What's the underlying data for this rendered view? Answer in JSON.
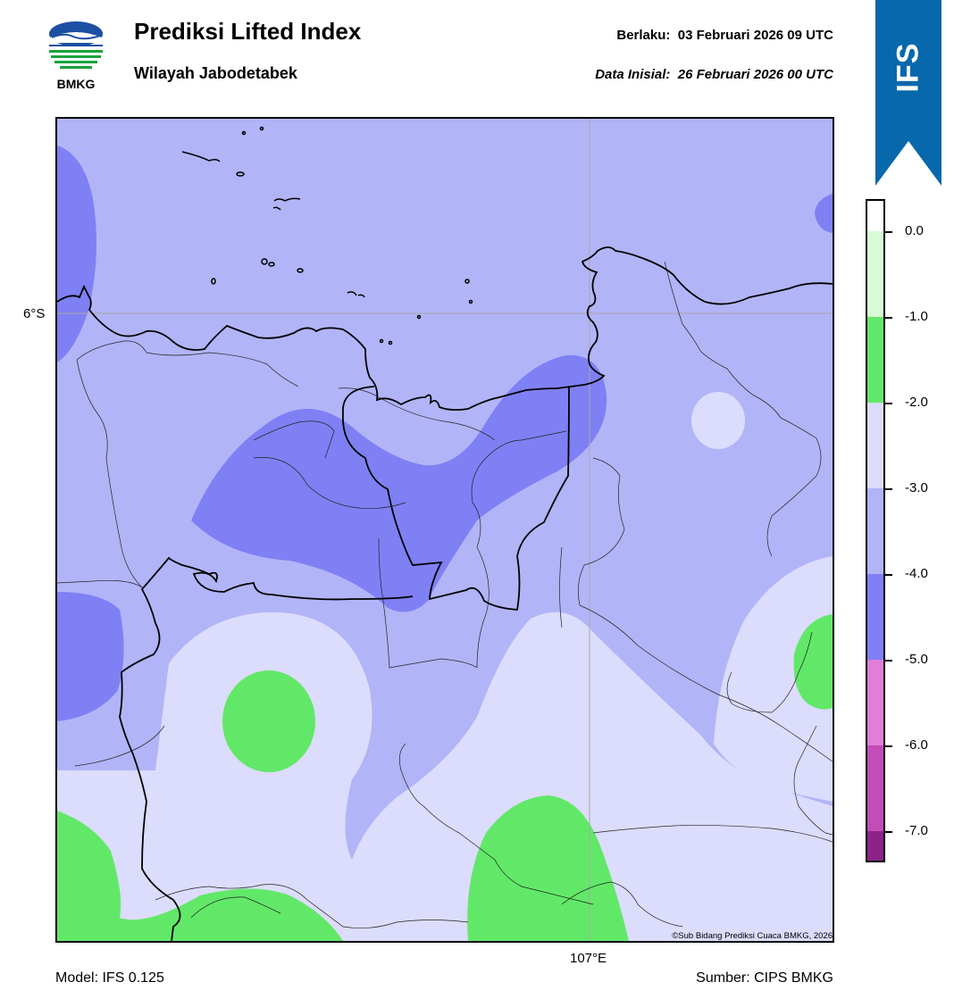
{
  "header": {
    "logo_text": "BMKG",
    "title": "Prediksi Lifted Index",
    "subtitle": "Wilayah Jabodetabek",
    "valid_label": "Berlaku:",
    "valid_value": "03 Februari 2026 09 UTC",
    "init_label": "Data Inisial:",
    "init_value": "26 Februari 2026 00 UTC",
    "ribbon_text": "IFS"
  },
  "map": {
    "lat_label": "6°S",
    "lon_label": "107°E",
    "copyright": "©Sub Bidang Prediksi Cuaca BMKG, 2026"
  },
  "footer": {
    "model": "Model: IFS 0.125",
    "source": "Sumber: CIPS BMKG"
  },
  "legend": {
    "ticks": [
      "0.0",
      "-1.0",
      "-2.0",
      "-3.0",
      "-4.0",
      "-5.0",
      "-6.0",
      "-7.0"
    ],
    "bands": [
      {
        "range": "above 0.0",
        "color": "#ffffff"
      },
      {
        "range": "0.0 to -1.0",
        "color": "#d6fbd6"
      },
      {
        "range": "-1.0 to -2.0",
        "color": "#62e868"
      },
      {
        "range": "-2.0 to -3.0",
        "color": "#dcdcfc"
      },
      {
        "range": "-3.0 to -4.0",
        "color": "#b2b4f8"
      },
      {
        "range": "-4.0 to -5.0",
        "color": "#7f80f4"
      },
      {
        "range": "-5.0 to -6.0",
        "color": "#e07ed8"
      },
      {
        "range": "-6.0 to -7.0",
        "color": "#c24cb8"
      },
      {
        "range": "below -7.0",
        "color": "#8c2488"
      }
    ]
  },
  "colors": {
    "ribbon": "#0868ac",
    "logo_blue": "#1d4fa3",
    "logo_green": "#18a23a"
  }
}
